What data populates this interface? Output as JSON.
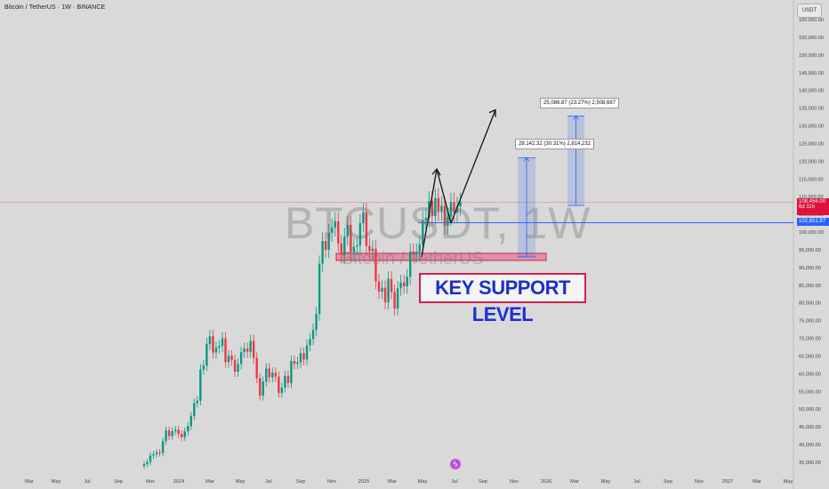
{
  "header": {
    "symbol_title": "Bitcoin / TetherUS · 1W · BINANCE",
    "currency_button": "USDT"
  },
  "watermark": {
    "main": "BTCUSDT, 1W",
    "sub": "Bitcoin / TetherUS"
  },
  "annotations": {
    "key_support": "KEY SUPPORT LEVEL",
    "measure_1": "28,142.32 (30.31%) 2,814,232",
    "measure_2": "25,086.87 (23.27%) 2,508,687"
  },
  "price_tags": {
    "current_price": "108,456.00",
    "countdown": "6d 11h",
    "level_price": "102,651.87"
  },
  "colors": {
    "bull": "#089981",
    "bear": "#f23645",
    "support_zone": "#e05a7a",
    "level_line": "#2962ff",
    "label_border": "#d02050",
    "label_text": "#1c2fd0"
  },
  "chart_data": {
    "type": "candlestick",
    "timeframe": "1W",
    "ylim": [
      32500,
      161000
    ],
    "y_ticks": [
      "160,000.00",
      "155,000.00",
      "150,000.00",
      "145,000.00",
      "140,000.00",
      "135,000.00",
      "130,000.00",
      "125,000.00",
      "120,000.00",
      "115,000.00",
      "110,000.00",
      "105,000.00",
      "100,000.00",
      "95,000.00",
      "90,000.00",
      "85,000.00",
      "80,000.00",
      "75,000.00",
      "70,000.00",
      "65,000.00",
      "60,000.00",
      "55,000.00",
      "50,000.00",
      "45,000.00",
      "40,000.00",
      "35,000.00"
    ],
    "x_ticks": [
      "Mar",
      "May",
      "Jul",
      "Sep",
      "Nov",
      "2024",
      "Mar",
      "May",
      "Jul",
      "Sep",
      "Nov",
      "2025",
      "Mar",
      "May",
      "Jul",
      "Sep",
      "Nov",
      "2026",
      "Mar",
      "May",
      "Jul",
      "Sep",
      "Nov",
      "2027",
      "Mar",
      "May"
    ],
    "closes": [
      34500,
      35100,
      36900,
      37300,
      37800,
      37600,
      41000,
      44000,
      42400,
      43800,
      44200,
      43000,
      42100,
      43700,
      45200,
      48100,
      51700,
      52400,
      61200,
      62300,
      68400,
      70600,
      66000,
      67400,
      67800,
      70000,
      63300,
      65100,
      63900,
      60600,
      62800,
      66100,
      67100,
      66200,
      69300,
      64500,
      58800,
      53800,
      57800,
      61500,
      59000,
      60300,
      59200,
      54600,
      56100,
      59400,
      57400,
      63600,
      62800,
      63200,
      65800,
      64000,
      68000,
      69800,
      72400,
      76900,
      91100,
      97500,
      95000,
      99800,
      101300,
      103100,
      96800,
      93500,
      98700,
      102000,
      94300,
      95900,
      96200,
      102500,
      105600,
      96100,
      94600,
      95300,
      86100,
      83200,
      84300,
      80200,
      86800,
      83100,
      78400,
      84100,
      85800,
      84700,
      87400,
      94500,
      93800,
      94400,
      96500,
      103400,
      104000,
      108800,
      104500,
      109600,
      105700,
      107400,
      101800,
      104300,
      108400,
      105500,
      107300,
      108456
    ],
    "support_zone": [
      92000,
      94000
    ],
    "level_line": 102651.87,
    "measures": [
      {
        "from": 93000,
        "to": 121000,
        "label": "28,142.32 (30.31%) 2,814,232"
      },
      {
        "from": 107500,
        "to": 132800,
        "label": "25,086.87 (23.27%) 2,508,687"
      }
    ],
    "projection": [
      {
        "x": "2025-05",
        "y": 93000
      },
      {
        "x": "2025-06",
        "y": 117800
      },
      {
        "x": "2025-07",
        "y": 102500
      },
      {
        "x": "2025-09",
        "y": 134500
      }
    ]
  }
}
